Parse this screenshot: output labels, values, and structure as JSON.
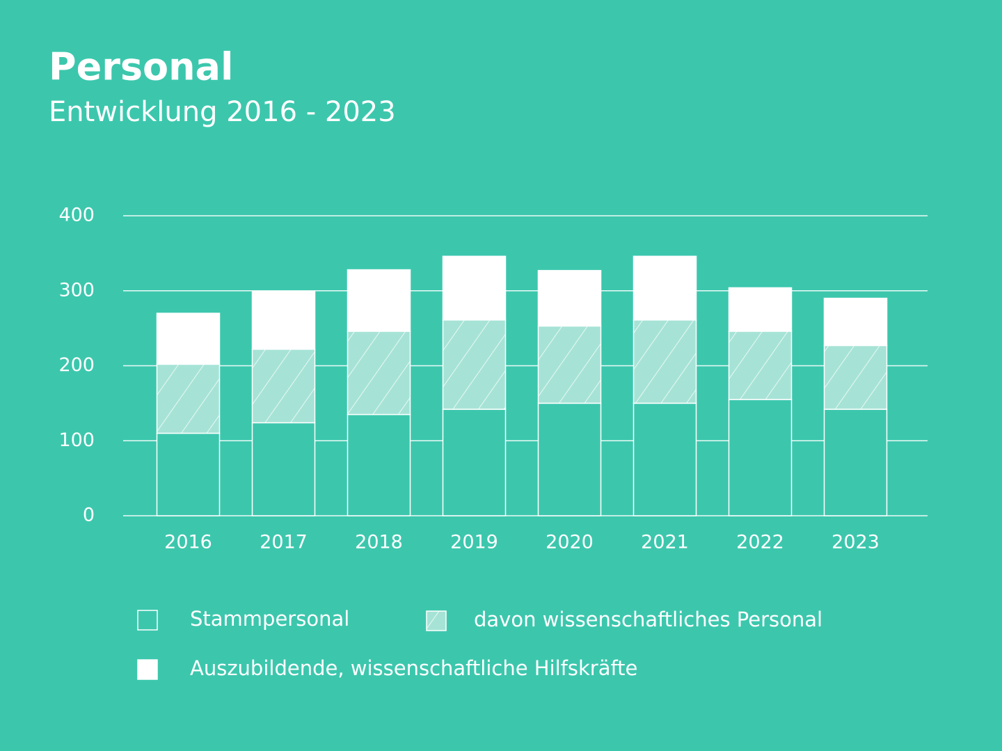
{
  "chart_data": {
    "type": "stacked-bar",
    "title": "Personal",
    "subtitle": "Entwicklung 2016 - 2023",
    "categories": [
      "2016",
      "2017",
      "2018",
      "2019",
      "2020",
      "2021",
      "2022",
      "2023"
    ],
    "series": [
      {
        "name": "Stammpersonal",
        "color": "#3cc7ad",
        "values": [
          110,
          124,
          135,
          142,
          150,
          150,
          155,
          142
        ]
      },
      {
        "name": "davon wissenschaftliches Personal",
        "color": "#a6e3d6",
        "hatched": true,
        "values": [
          92,
          98,
          111,
          119,
          103,
          111,
          91,
          85
        ]
      },
      {
        "name": "Auszubildende, wissenschaftliche Hilfskräfte",
        "color": "#ffffff",
        "values": [
          68,
          77,
          82,
          85,
          74,
          85,
          58,
          63
        ]
      }
    ],
    "ylim": [
      0,
      400
    ],
    "yticks": [
      0,
      100,
      200,
      300,
      400
    ],
    "grid": true
  }
}
